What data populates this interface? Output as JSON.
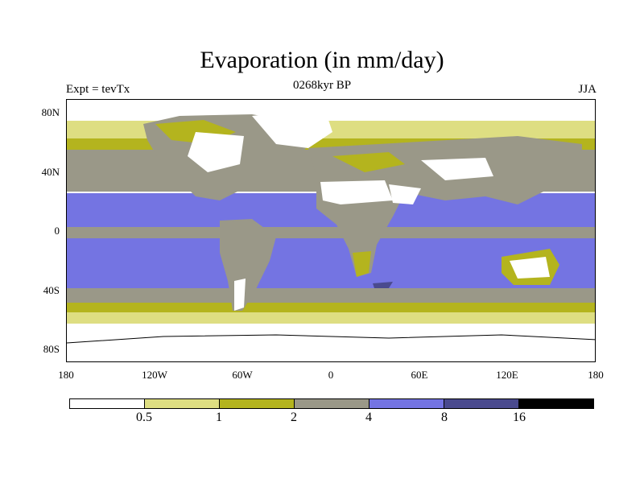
{
  "title": "Evaporation (in mm/day)",
  "subtitle": "0268kyr BP",
  "left_label": "Expt = tevTx",
  "right_label": "JJA",
  "map": {
    "lat_labels": [
      "80N",
      "40N",
      "0",
      "40S",
      "80S"
    ],
    "lon_labels": [
      "180",
      "120W",
      "60W",
      "0",
      "60E",
      "120E",
      "180"
    ]
  },
  "colorbar": {
    "colors": [
      "#ffffff",
      "#dede82",
      "#b4b41e",
      "#9a9888",
      "#7474e2",
      "#4a4a8e",
      "#000000"
    ],
    "labels": [
      "0.5",
      "1",
      "2",
      "4",
      "8",
      "16"
    ]
  },
  "chart_data": {
    "type": "heatmap",
    "title": "Evaporation (in mm/day)",
    "subtitle": "0268kyr BP",
    "experiment": "Expt = tevTx",
    "season": "JJA",
    "units": "mm/day",
    "levels": [
      0.5,
      1,
      2,
      4,
      8,
      16
    ],
    "lat_ticks": [
      "80N",
      "40N",
      "0",
      "40S",
      "80S"
    ],
    "lon_ticks": [
      "180",
      "120W",
      "60W",
      "0",
      "60E",
      "120E",
      "180"
    ],
    "lat_range": [
      -90,
      90
    ],
    "lon_range": [
      -180,
      180
    ]
  }
}
